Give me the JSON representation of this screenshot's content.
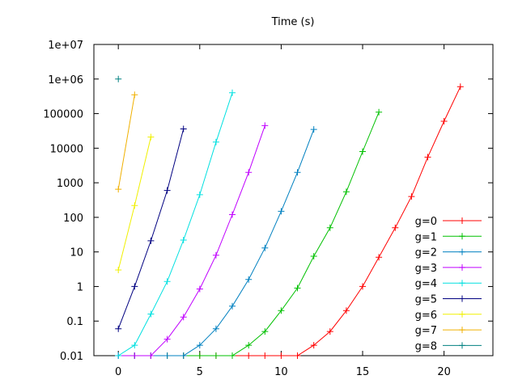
{
  "chart_data": {
    "type": "line",
    "title": "Time (s)",
    "xlabel": "",
    "ylabel": "",
    "xlim": [
      -1.5,
      23
    ],
    "ylim": [
      0.01,
      10000000
    ],
    "yscale": "log",
    "grid": false,
    "legend": {
      "position": "bottom-right"
    },
    "x_ticks": [
      0,
      5,
      10,
      15,
      20
    ],
    "x_tick_labels": [
      "0",
      "5",
      "10",
      "15",
      "20"
    ],
    "y_ticks": [
      0.01,
      0.1,
      1,
      10,
      100,
      1000,
      10000,
      100000,
      1000000,
      10000000
    ],
    "y_tick_labels": [
      "0.01",
      "0.1",
      "1",
      "10",
      "100",
      "1000",
      "10000",
      "100000",
      "1e+06",
      "1e+07"
    ],
    "series": [
      {
        "name": "g=0",
        "color": "#ff0000",
        "x": [
          0,
          1,
          2,
          3,
          4,
          5,
          6,
          7,
          8,
          9,
          10,
          11,
          12,
          13,
          14,
          15,
          16,
          17,
          18,
          19,
          20,
          21
        ],
        "y": [
          0.01,
          0.01,
          0.01,
          0.01,
          0.01,
          0.01,
          0.01,
          0.01,
          0.01,
          0.01,
          0.01,
          0.01,
          0.02,
          0.05,
          0.2,
          1,
          7,
          50,
          400,
          5500,
          60000,
          600000
        ]
      },
      {
        "name": "g=1",
        "color": "#00c000",
        "x": [
          0,
          1,
          2,
          3,
          4,
          5,
          6,
          7,
          8,
          9,
          10,
          11,
          12,
          13,
          14,
          15,
          16
        ],
        "y": [
          0.01,
          0.01,
          0.01,
          0.01,
          0.01,
          0.01,
          0.01,
          0.01,
          0.02,
          0.05,
          0.2,
          0.9,
          7.5,
          50,
          550,
          8000,
          110000
        ]
      },
      {
        "name": "g=2",
        "color": "#0080c0",
        "x": [
          0,
          1,
          2,
          3,
          4,
          5,
          6,
          7,
          8,
          9,
          10,
          11,
          12
        ],
        "y": [
          0.01,
          0.01,
          0.01,
          0.01,
          0.01,
          0.02,
          0.06,
          0.27,
          1.6,
          13,
          150,
          2000,
          35000
        ]
      },
      {
        "name": "g=3",
        "color": "#c000ff",
        "x": [
          0,
          1,
          2,
          3,
          4,
          5,
          6,
          7,
          8,
          9
        ],
        "y": [
          0.01,
          0.01,
          0.01,
          0.03,
          0.13,
          0.85,
          8,
          120,
          2000,
          45000
        ]
      },
      {
        "name": "g=4",
        "color": "#00e0e0",
        "x": [
          0,
          1,
          2,
          3,
          4,
          5,
          6,
          7
        ],
        "y": [
          0.01,
          0.02,
          0.16,
          1.4,
          22,
          450,
          15000,
          400000
        ]
      },
      {
        "name": "g=5",
        "color": "#000080",
        "x": [
          0,
          1,
          2,
          3,
          4
        ],
        "y": [
          0.06,
          1,
          21,
          600,
          36000
        ]
      },
      {
        "name": "g=6",
        "color": "#f0f000",
        "x": [
          0,
          1,
          2
        ],
        "y": [
          3,
          220,
          21000
        ]
      },
      {
        "name": "g=7",
        "color": "#f0b000",
        "x": [
          0,
          1
        ],
        "y": [
          650,
          350000
        ]
      },
      {
        "name": "g=8",
        "color": "#008080",
        "x": [
          0
        ],
        "y": [
          1000000
        ]
      }
    ]
  }
}
